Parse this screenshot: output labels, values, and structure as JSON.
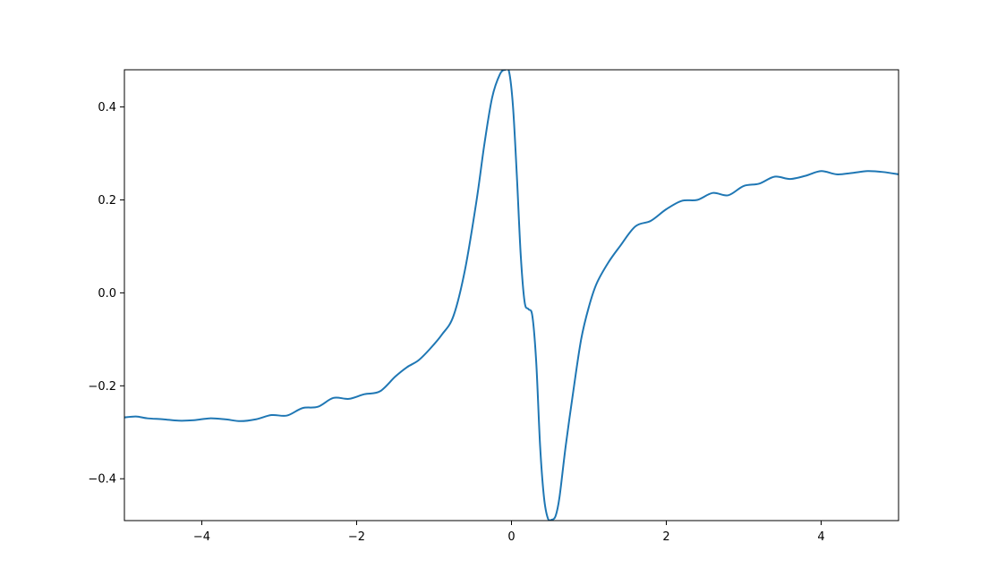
{
  "chart_data": {
    "type": "line",
    "title": "",
    "xlabel": "",
    "ylabel": "",
    "xlim": [
      -5,
      5
    ],
    "ylim": [
      -0.49,
      0.48
    ],
    "grid": false,
    "legend": "none",
    "line_color": "#1f77b4",
    "x_ticks": [
      {
        "value": -4,
        "label": "−4"
      },
      {
        "value": -2,
        "label": "−2"
      },
      {
        "value": 0,
        "label": "0"
      },
      {
        "value": 2,
        "label": "2"
      },
      {
        "value": 4,
        "label": "4"
      }
    ],
    "y_ticks": [
      {
        "value": -0.4,
        "label": "−0.4"
      },
      {
        "value": -0.2,
        "label": "−0.2"
      },
      {
        "value": 0.0,
        "label": "0.0"
      },
      {
        "value": 0.2,
        "label": "0.2"
      },
      {
        "value": 0.4,
        "label": "0.4"
      }
    ],
    "series": [
      {
        "x": [
          -5.0,
          -4.85,
          -4.7,
          -4.5,
          -4.3,
          -4.1,
          -3.9,
          -3.7,
          -3.5,
          -3.3,
          -3.1,
          -2.9,
          -2.7,
          -2.5,
          -2.3,
          -2.1,
          -1.9,
          -1.7,
          -1.5,
          -1.35,
          -1.2,
          -1.05,
          -0.9,
          -0.75,
          -0.6,
          -0.45,
          -0.35,
          -0.25,
          -0.15,
          -0.08,
          -0.03,
          0.02,
          0.07,
          0.12,
          0.17,
          0.22,
          0.27,
          0.32,
          0.37,
          0.42,
          0.47,
          0.52,
          0.57,
          0.62,
          0.7,
          0.8,
          0.9,
          1.0,
          1.1,
          1.25,
          1.4,
          1.6,
          1.8,
          2.0,
          2.2,
          2.4,
          2.6,
          2.8,
          3.0,
          3.2,
          3.4,
          3.6,
          3.8,
          4.0,
          4.2,
          4.4,
          4.6,
          4.8,
          5.0
        ],
        "y": [
          -0.268,
          -0.266,
          -0.27,
          -0.272,
          -0.275,
          -0.274,
          -0.27,
          -0.272,
          -0.276,
          -0.272,
          -0.263,
          -0.264,
          -0.248,
          -0.245,
          -0.226,
          -0.228,
          -0.218,
          -0.212,
          -0.18,
          -0.16,
          -0.145,
          -0.12,
          -0.09,
          -0.05,
          0.05,
          0.2,
          0.32,
          0.42,
          0.47,
          0.48,
          0.475,
          0.4,
          0.25,
          0.08,
          -0.02,
          -0.035,
          -0.05,
          -0.15,
          -0.33,
          -0.44,
          -0.485,
          -0.488,
          -0.48,
          -0.44,
          -0.33,
          -0.21,
          -0.1,
          -0.03,
          0.02,
          0.065,
          0.1,
          0.143,
          0.155,
          0.18,
          0.198,
          0.2,
          0.215,
          0.21,
          0.23,
          0.235,
          0.25,
          0.245,
          0.252,
          0.262,
          0.255,
          0.258,
          0.262,
          0.26,
          0.255
        ]
      }
    ]
  }
}
